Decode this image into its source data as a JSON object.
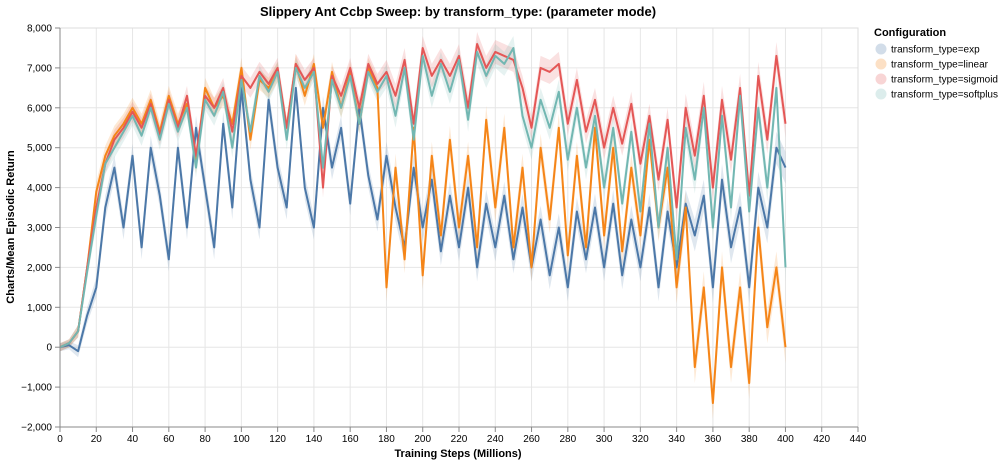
{
  "chart_data": {
    "type": "line",
    "title": "Slippery Ant Ccbp Sweep: by transform_type: (parameter mode)",
    "xlabel": "Training Steps (Millions)",
    "ylabel": "Charts/Mean Episodic Return",
    "xlim": [
      0,
      440
    ],
    "ylim": [
      -2000,
      8000
    ],
    "x_ticks": [
      "0",
      "20",
      "40",
      "60",
      "80",
      "100",
      "120",
      "140",
      "160",
      "180",
      "200",
      "220",
      "240",
      "260",
      "280",
      "300",
      "320",
      "340",
      "360",
      "380",
      "400",
      "420",
      "440"
    ],
    "y_ticks": [
      "−2,000",
      "−1,000",
      "0",
      "1,000",
      "2,000",
      "3,000",
      "4,000",
      "5,000",
      "6,000",
      "7,000",
      "8,000"
    ],
    "grid": true,
    "legend_position": "right",
    "legend_title": "Configuration",
    "series": [
      {
        "name": "transform_type=exp",
        "color": "#4c78a8",
        "x": [
          0,
          5,
          10,
          15,
          20,
          25,
          30,
          35,
          40,
          45,
          50,
          55,
          60,
          65,
          70,
          75,
          80,
          85,
          90,
          95,
          100,
          105,
          110,
          115,
          120,
          125,
          130,
          135,
          140,
          145,
          150,
          155,
          160,
          165,
          170,
          175,
          180,
          185,
          190,
          195,
          200,
          205,
          210,
          215,
          220,
          225,
          230,
          235,
          240,
          245,
          250,
          255,
          260,
          265,
          270,
          275,
          280,
          285,
          290,
          295,
          300,
          305,
          310,
          315,
          320,
          325,
          330,
          335,
          340,
          345,
          350,
          355,
          360,
          365,
          370,
          375,
          380,
          385,
          390,
          395,
          400
        ],
        "y": [
          0,
          50,
          -100,
          800,
          1500,
          3500,
          4500,
          3000,
          4800,
          2500,
          5000,
          3800,
          2200,
          5000,
          3000,
          5500,
          4000,
          2500,
          5600,
          3500,
          6500,
          4200,
          3000,
          6200,
          4500,
          3500,
          6500,
          4000,
          3000,
          6000,
          4500,
          5500,
          3600,
          6000,
          4300,
          3200,
          4800,
          3500,
          2500,
          4500,
          3000,
          4200,
          2400,
          3800,
          2500,
          4000,
          2000,
          3600,
          2500,
          3800,
          2200,
          3500,
          2000,
          3200,
          1800,
          3000,
          1500,
          3400,
          2200,
          3500,
          2000,
          3600,
          1800,
          3200,
          2000,
          3500,
          1500,
          3400,
          2000,
          3600,
          2800,
          3800,
          1500,
          4200,
          2500,
          3500,
          1500,
          4000,
          3000,
          5000,
          4500
        ],
        "band": [
          100,
          100,
          150,
          200,
          250,
          300,
          300,
          300,
          300,
          300,
          300,
          300,
          300,
          300,
          300,
          300,
          300,
          300,
          300,
          300,
          300,
          300,
          300,
          300,
          300,
          300,
          300,
          300,
          300,
          300,
          300,
          300,
          300,
          300,
          300,
          300,
          350,
          350,
          350,
          350,
          350,
          350,
          350,
          350,
          350,
          350,
          350,
          350,
          350,
          350,
          350,
          350,
          350,
          350,
          350,
          350,
          350,
          350,
          350,
          350,
          350,
          350,
          350,
          350,
          350,
          350,
          350,
          350,
          350,
          350,
          400,
          400,
          400,
          400,
          400,
          400,
          400,
          400,
          400,
          400,
          400
        ]
      },
      {
        "name": "transform_type=linear",
        "color": "#f58518",
        "x": [
          0,
          5,
          10,
          15,
          20,
          25,
          30,
          35,
          40,
          45,
          50,
          55,
          60,
          65,
          70,
          75,
          80,
          85,
          90,
          95,
          100,
          105,
          110,
          115,
          120,
          125,
          130,
          135,
          140,
          145,
          150,
          155,
          160,
          165,
          170,
          175,
          180,
          185,
          190,
          195,
          200,
          205,
          210,
          215,
          220,
          225,
          230,
          235,
          240,
          245,
          250,
          255,
          260,
          265,
          270,
          275,
          280,
          285,
          290,
          295,
          300,
          305,
          310,
          315,
          320,
          325,
          330,
          335,
          340,
          345,
          350,
          355,
          360,
          365,
          370,
          375,
          380,
          385,
          390,
          395,
          400
        ],
        "y": [
          0,
          100,
          400,
          2000,
          3900,
          4800,
          5300,
          5600,
          6000,
          5600,
          6200,
          5400,
          6300,
          5600,
          6100,
          4600,
          6500,
          6000,
          6300,
          5600,
          7000,
          5200,
          6700,
          6500,
          6900,
          5500,
          7100,
          6300,
          7100,
          5500,
          6900,
          6000,
          6900,
          5600,
          7000,
          6500,
          1500,
          4500,
          2200,
          5500,
          1800,
          4800,
          2800,
          5200,
          3000,
          4800,
          2500,
          5700,
          3500,
          5500,
          2500,
          4500,
          2000,
          5000,
          3200,
          5500,
          2300,
          4800,
          2500,
          5500,
          2800,
          5000,
          2400,
          4500,
          2800,
          5200,
          3000,
          4500,
          1500,
          3500,
          -500,
          1500,
          -1400,
          2000,
          -500,
          1500,
          -900,
          3000,
          500,
          2000,
          0
        ],
        "band": [
          100,
          100,
          150,
          200,
          250,
          250,
          250,
          250,
          250,
          250,
          250,
          250,
          250,
          250,
          250,
          250,
          250,
          250,
          250,
          250,
          250,
          250,
          250,
          250,
          250,
          250,
          250,
          250,
          250,
          250,
          250,
          250,
          250,
          250,
          250,
          250,
          350,
          350,
          350,
          350,
          350,
          350,
          350,
          350,
          350,
          350,
          350,
          350,
          350,
          350,
          350,
          350,
          350,
          350,
          350,
          350,
          350,
          350,
          350,
          350,
          350,
          350,
          350,
          350,
          350,
          350,
          350,
          350,
          400,
          400,
          400,
          400,
          400,
          400,
          400,
          400,
          400,
          400,
          400,
          400,
          400
        ]
      },
      {
        "name": "transform_type=sigmoid",
        "color": "#e45756",
        "x": [
          0,
          5,
          10,
          15,
          20,
          25,
          30,
          35,
          40,
          45,
          50,
          55,
          60,
          65,
          70,
          75,
          80,
          85,
          90,
          95,
          100,
          105,
          110,
          115,
          120,
          125,
          130,
          135,
          140,
          145,
          150,
          155,
          160,
          165,
          170,
          175,
          180,
          185,
          190,
          195,
          200,
          205,
          210,
          215,
          220,
          225,
          230,
          235,
          240,
          245,
          250,
          255,
          260,
          265,
          270,
          275,
          280,
          285,
          290,
          295,
          300,
          305,
          310,
          315,
          320,
          325,
          330,
          335,
          340,
          345,
          350,
          355,
          360,
          365,
          370,
          375,
          380,
          385,
          390,
          395,
          400
        ],
        "y": [
          0,
          100,
          400,
          2000,
          3500,
          4600,
          5200,
          5500,
          5900,
          5500,
          6100,
          5300,
          6200,
          5500,
          6300,
          4800,
          6300,
          6000,
          6500,
          5400,
          6800,
          6500,
          6900,
          6600,
          7000,
          5500,
          7100,
          6700,
          7000,
          4000,
          6800,
          6300,
          7000,
          6000,
          7100,
          6600,
          6900,
          6300,
          7200,
          5600,
          7500,
          6800,
          7200,
          6800,
          7300,
          6000,
          7600,
          7000,
          7400,
          7300,
          7200,
          6500,
          5500,
          7000,
          6900,
          7100,
          5600,
          6700,
          5400,
          6200,
          5000,
          6000,
          5100,
          6100,
          4600,
          5800,
          4200,
          5700,
          3500,
          6000,
          4800,
          6300,
          4000,
          6200,
          4700,
          6500,
          3800,
          6800,
          5200,
          7300,
          5600
        ],
        "band": [
          100,
          100,
          150,
          200,
          250,
          250,
          250,
          250,
          250,
          250,
          250,
          250,
          250,
          250,
          250,
          250,
          250,
          250,
          250,
          250,
          250,
          250,
          250,
          250,
          250,
          250,
          250,
          250,
          250,
          250,
          250,
          250,
          250,
          250,
          250,
          250,
          300,
          300,
          300,
          300,
          300,
          300,
          300,
          300,
          300,
          300,
          300,
          300,
          300,
          300,
          300,
          300,
          300,
          300,
          300,
          300,
          300,
          300,
          300,
          300,
          300,
          300,
          300,
          300,
          300,
          300,
          300,
          300,
          350,
          350,
          350,
          350,
          350,
          350,
          350,
          350,
          350,
          350,
          350,
          350,
          350
        ]
      },
      {
        "name": "transform_type=softplus",
        "color": "#72b7b2",
        "x": [
          0,
          5,
          10,
          15,
          20,
          25,
          30,
          35,
          40,
          45,
          50,
          55,
          60,
          65,
          70,
          75,
          80,
          85,
          90,
          95,
          100,
          105,
          110,
          115,
          120,
          125,
          130,
          135,
          140,
          145,
          150,
          155,
          160,
          165,
          170,
          175,
          180,
          185,
          190,
          195,
          200,
          205,
          210,
          215,
          220,
          225,
          230,
          235,
          240,
          245,
          250,
          255,
          260,
          265,
          270,
          275,
          280,
          285,
          290,
          295,
          300,
          305,
          310,
          315,
          320,
          325,
          330,
          335,
          340,
          345,
          350,
          355,
          360,
          365,
          370,
          375,
          380,
          385,
          390,
          395,
          400
        ],
        "y": [
          0,
          100,
          400,
          1900,
          3300,
          4600,
          5000,
          5400,
          5800,
          5300,
          6000,
          5200,
          6100,
          5400,
          6000,
          4500,
          6200,
          5800,
          6400,
          5000,
          6700,
          5400,
          6800,
          6400,
          6900,
          5200,
          7000,
          6500,
          6900,
          4500,
          6700,
          6000,
          6800,
          5600,
          6900,
          6400,
          6800,
          5800,
          7000,
          5200,
          7300,
          6300,
          7100,
          6400,
          7200,
          5700,
          7400,
          6800,
          7300,
          7100,
          7500,
          5800,
          5000,
          6200,
          5500,
          6400,
          4700,
          6000,
          4500,
          5800,
          4000,
          5500,
          3600,
          5400,
          3400,
          5600,
          3000,
          5000,
          2200,
          5500,
          4200,
          6000,
          3000,
          5800,
          3500,
          6300,
          3400,
          6000,
          4000,
          6500,
          2000
        ],
        "band": [
          100,
          100,
          150,
          200,
          250,
          250,
          250,
          250,
          250,
          250,
          250,
          250,
          250,
          250,
          250,
          250,
          250,
          250,
          250,
          250,
          250,
          250,
          250,
          250,
          250,
          250,
          250,
          250,
          250,
          250,
          250,
          250,
          250,
          250,
          250,
          250,
          300,
          300,
          300,
          300,
          300,
          300,
          300,
          300,
          300,
          300,
          300,
          300,
          300,
          300,
          300,
          300,
          300,
          300,
          300,
          300,
          300,
          300,
          300,
          300,
          300,
          300,
          300,
          300,
          300,
          300,
          300,
          300,
          350,
          350,
          350,
          350,
          350,
          350,
          350,
          350,
          350,
          350,
          350,
          350,
          350
        ]
      }
    ]
  }
}
